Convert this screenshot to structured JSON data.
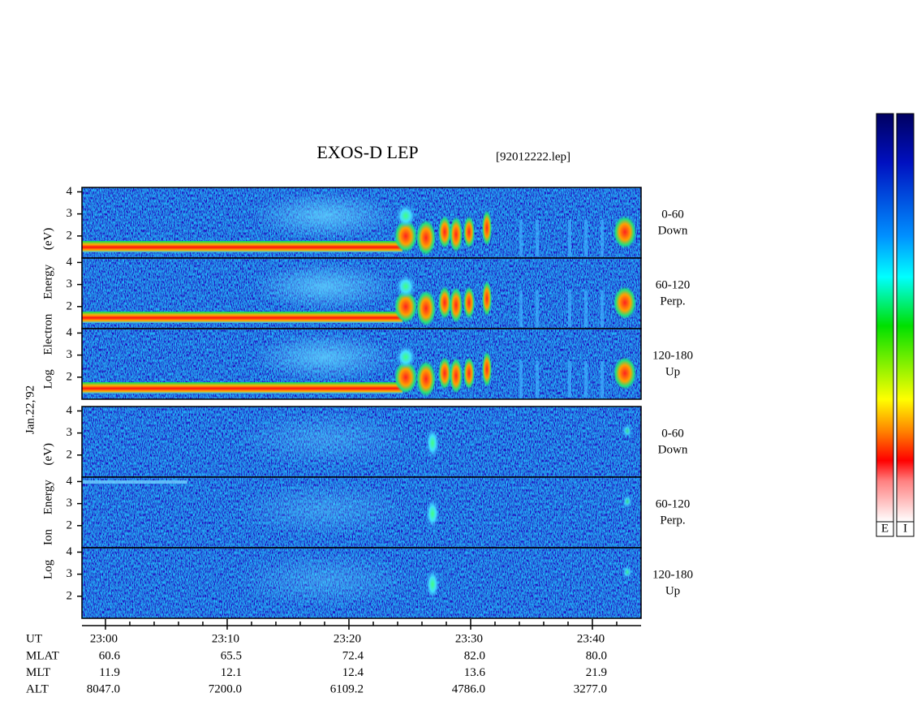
{
  "title": "EXOS-D LEP",
  "file": "[92012222.lep]",
  "date": "Jan.22,'92",
  "chart_data": {
    "type": "spectrogram",
    "xlim": [
      1378.07,
      1424
    ],
    "xticks": [
      {
        "value": 1380,
        "label": "23:00"
      },
      {
        "value": 1390,
        "label": "23:10"
      },
      {
        "value": 1400,
        "label": "23:20"
      },
      {
        "value": 1410,
        "label": "23:30"
      },
      {
        "value": 1420,
        "label": "23:40"
      }
    ],
    "xminorticks": [
      1382,
      1384,
      1386,
      1388,
      1392,
      1394,
      1396,
      1398,
      1402,
      1404,
      1406,
      1408,
      1412,
      1414,
      1416,
      1418,
      1422
    ],
    "ylim": [
      1,
      4.2
    ],
    "yticks": [
      2,
      3,
      4
    ],
    "groups": [
      {
        "ylabel": "Log Electron Energy (eV)",
        "panels": [
          {
            "angle": "0-60",
            "direction": "Down"
          },
          {
            "angle": "60-120",
            "direction": "Perp."
          },
          {
            "angle": "120-180",
            "direction": "Up"
          }
        ]
      },
      {
        "ylabel": "Log Ion Energy (eV)",
        "panels": [
          {
            "angle": "0-60",
            "direction": "Down"
          },
          {
            "angle": "60-120",
            "direction": "Perp."
          },
          {
            "angle": "120-180",
            "direction": "Up"
          }
        ]
      }
    ]
  },
  "orbit": {
    "ut": "UT",
    "rows": [
      {
        "name": "MLAT",
        "values": [
          "60.6",
          "65.5",
          "72.4",
          "82.0",
          "80.0"
        ]
      },
      {
        "name": "MLT",
        "values": [
          "11.9",
          "12.1",
          "12.4",
          "13.6",
          "21.9"
        ]
      },
      {
        "name": "ALT",
        "values": [
          "8047.0",
          "7200.0",
          "6109.2",
          "4786.0",
          "3277.0"
        ]
      }
    ]
  },
  "colorbars": [
    "E",
    "I"
  ]
}
